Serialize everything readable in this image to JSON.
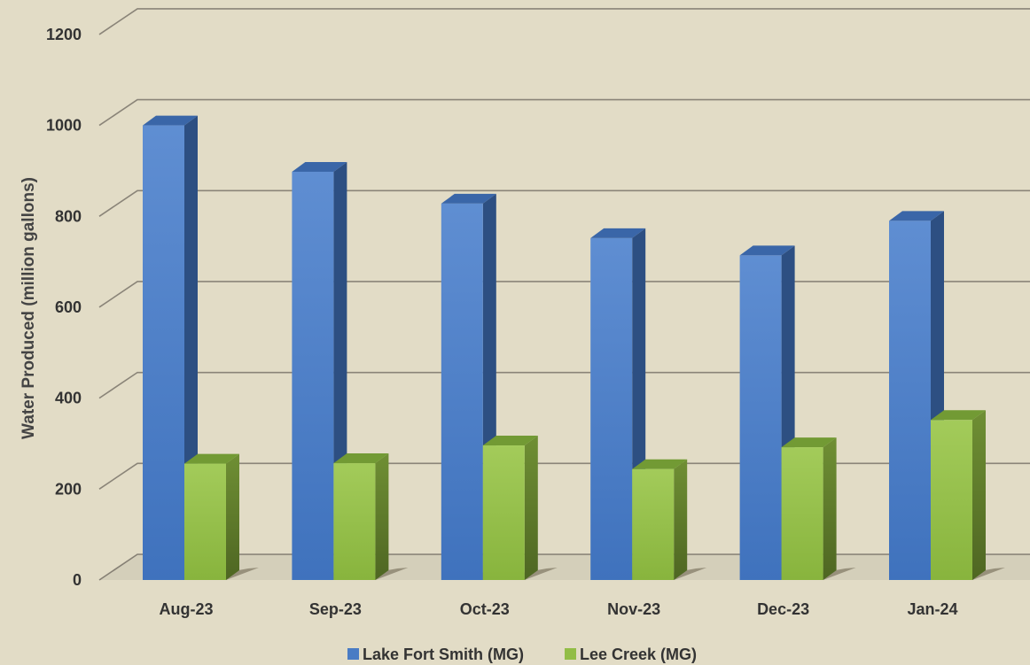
{
  "chart_data": {
    "type": "bar",
    "title": "",
    "xlabel": "",
    "ylabel": "Water Produced (million gallons)",
    "categories": [
      "Aug-23",
      "Sep-23",
      "Oct-23",
      "Nov-23",
      "Dec-23",
      "Jan-24"
    ],
    "series": [
      {
        "name": "Lake Fort Smith (MG)",
        "values": [
          1000,
          898,
          828,
          752,
          714,
          790
        ]
      },
      {
        "name": "Lee Creek (MG)",
        "values": [
          256,
          257,
          296,
          244,
          292,
          352
        ]
      }
    ],
    "ylim": [
      0,
      1200
    ],
    "yticks": [
      "0",
      "200",
      "400",
      "600",
      "800",
      "1000",
      "1200"
    ],
    "grid": true,
    "legend_position": "bottom",
    "colors": {
      "series1_front": "#4a7cc4",
      "series1_side": "#2d4f82",
      "series1_top": "#3a66a8",
      "series2_front": "#92bd46",
      "series2_side": "#5e7a2a",
      "series2_top": "#729a34",
      "background": "#e2dcc6",
      "gridline": "#8a8478"
    }
  }
}
